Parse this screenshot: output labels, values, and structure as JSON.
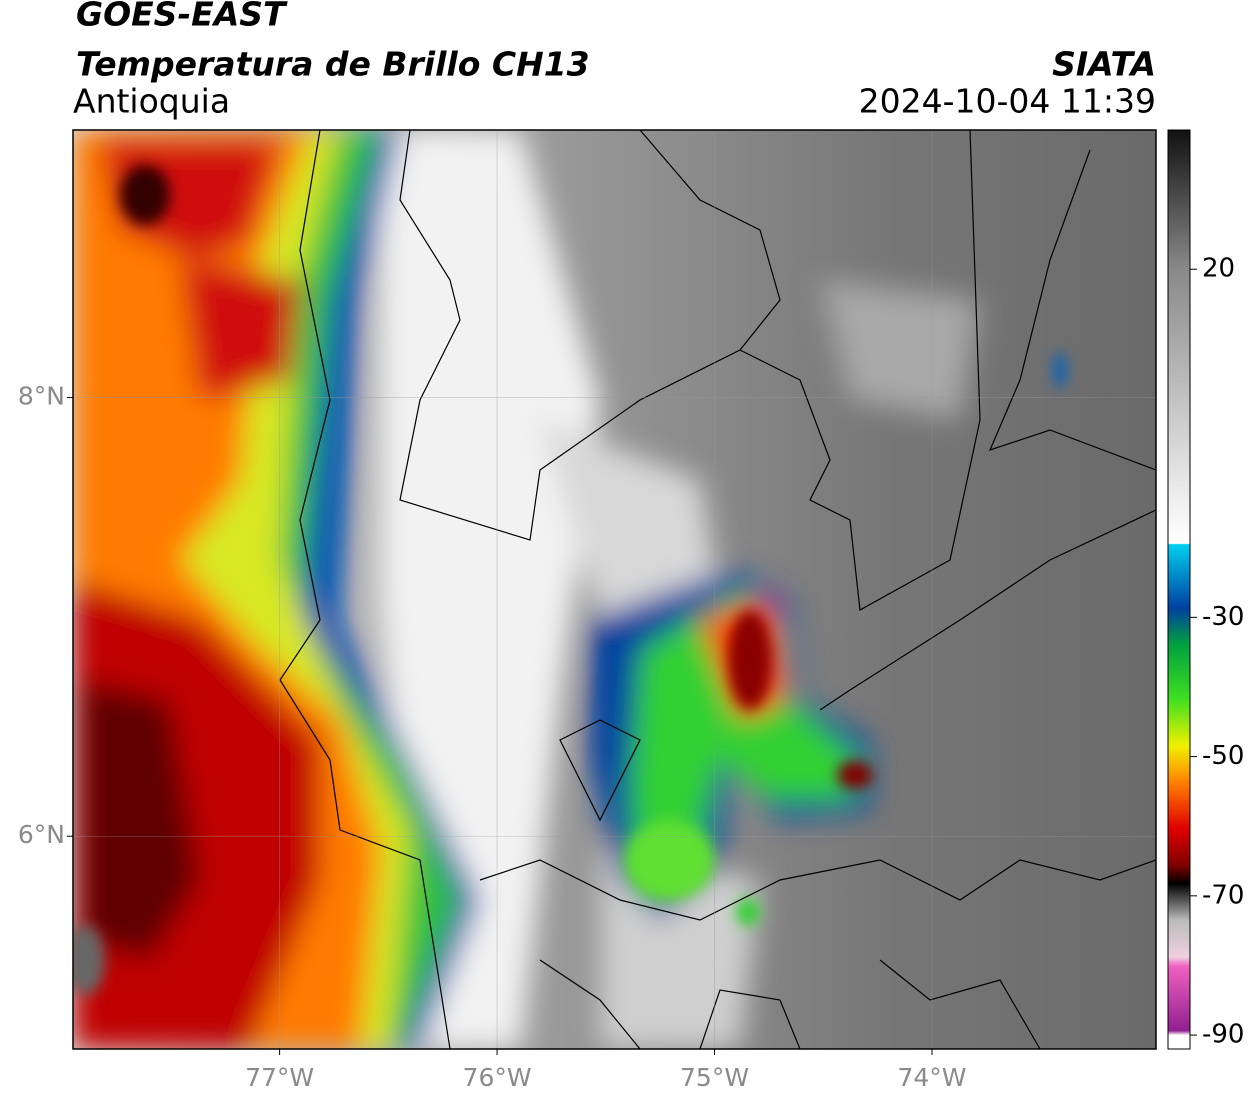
{
  "header": {
    "title": "GOES-EAST",
    "subtitle": "Temperatura de Brillo CH13",
    "region": "Antioquia",
    "source": "SIATA",
    "datetime": "2024-10-04 11:39"
  },
  "map": {
    "xlim": [
      -77.95,
      -72.97
    ],
    "ylim": [
      5.03,
      9.22
    ],
    "xticks": [
      {
        "value": -77,
        "label": "77°W"
      },
      {
        "value": -76,
        "label": "76°W"
      },
      {
        "value": -75,
        "label": "75°W"
      },
      {
        "value": -74,
        "label": "74°W"
      }
    ],
    "yticks": [
      {
        "value": 6,
        "label": "6°N"
      },
      {
        "value": 8,
        "label": "8°N"
      }
    ],
    "grid": true
  },
  "colorbar": {
    "lim": [
      -92,
      40
    ],
    "ticks": [
      20,
      -30,
      -50,
      -70,
      -90
    ]
  }
}
